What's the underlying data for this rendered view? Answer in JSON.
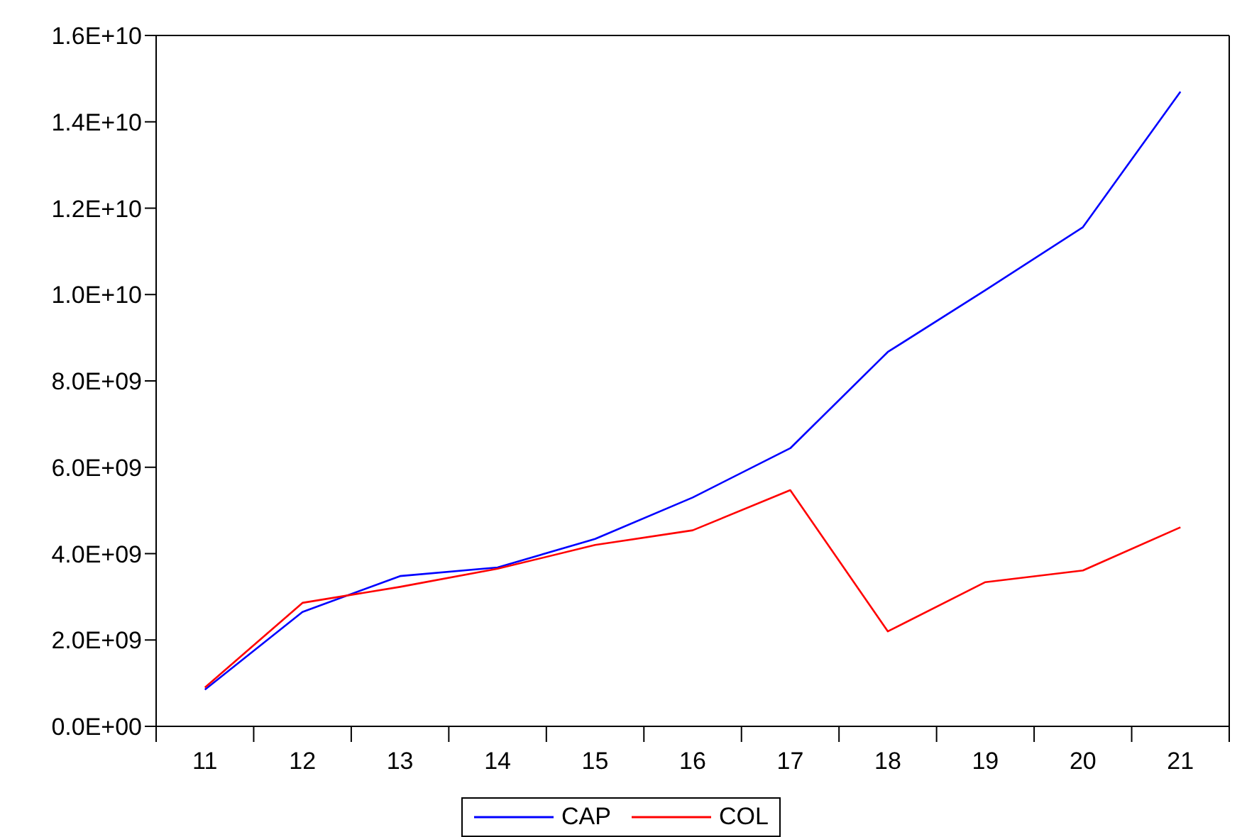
{
  "chart_data": {
    "type": "line",
    "categories": [
      "11",
      "12",
      "13",
      "14",
      "15",
      "16",
      "17",
      "18",
      "19",
      "20",
      "21"
    ],
    "series": [
      {
        "name": "CAP",
        "color": "#0000ff",
        "values": [
          850000000,
          2650000000,
          3480000000,
          3680000000,
          4340000000,
          5300000000,
          6440000000,
          8670000000,
          10100000000,
          11560000000,
          14700000000
        ]
      },
      {
        "name": "COL",
        "color": "#ff0000",
        "values": [
          900000000,
          2860000000,
          3230000000,
          3650000000,
          4200000000,
          4540000000,
          5470000000,
          2200000000,
          3340000000,
          3610000000,
          4610000000
        ]
      }
    ],
    "ylim": [
      0,
      16000000000
    ],
    "yticks": [
      {
        "value": 0,
        "label": "0.0E+00"
      },
      {
        "value": 2000000000,
        "label": "2.0E+09"
      },
      {
        "value": 4000000000,
        "label": "4.0E+09"
      },
      {
        "value": 6000000000,
        "label": "6.0E+09"
      },
      {
        "value": 8000000000,
        "label": "8.0E+09"
      },
      {
        "value": 10000000000,
        "label": "1.0E+10"
      },
      {
        "value": 12000000000,
        "label": "1.2E+10"
      },
      {
        "value": 14000000000,
        "label": "1.4E+10"
      },
      {
        "value": 16000000000,
        "label": "1.6E+10"
      }
    ],
    "grid": false,
    "legend": "bottom",
    "marker": "none",
    "line_style": "solid"
  }
}
